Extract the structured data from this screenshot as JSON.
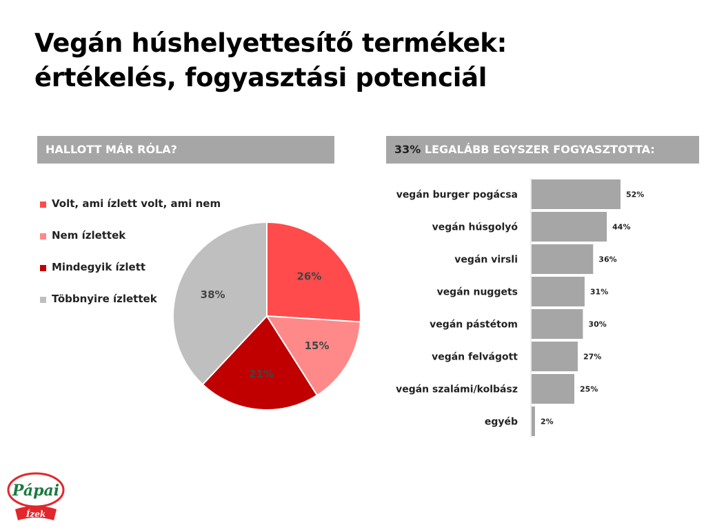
{
  "title": {
    "line1": "Vegán húshelyettesítő termékek:",
    "line2": "értékelés, fogyasztási potenciál"
  },
  "left_header": "HALLOTT  MÁR RÓLA?",
  "right_header": {
    "pct": "33%",
    "text": " LEGALÁBB EGYSZER FOGYASZTOTTA:"
  },
  "logo": {
    "brand": "Pápai",
    "sub": "Ízek"
  },
  "colors": {
    "red": "#ff4b4b",
    "pink": "#ff8989",
    "darkred": "#c00000",
    "gray": "#bfbfbf",
    "bar": "#a6a6a6",
    "logo_green": "#1b7a3e",
    "logo_red": "#e3262b"
  },
  "chart_data": [
    {
      "type": "pie",
      "title": "HALLOTT  MÁR RÓLA?",
      "legend_position": "left",
      "slices": [
        {
          "name": "Volt, ami ízlett volt, ami nem",
          "value": 26,
          "label": "26%",
          "color": "#ff4b4b"
        },
        {
          "name": "Nem ízlettek",
          "value": 15,
          "label": "15%",
          "color": "#ff8989"
        },
        {
          "name": "Mindegyik ízlett",
          "value": 21,
          "label": "21%",
          "color": "#c00000"
        },
        {
          "name": "Többnyire ízlettek",
          "value": 38,
          "label": "38%",
          "color": "#bfbfbf"
        }
      ]
    },
    {
      "type": "bar",
      "orientation": "horizontal",
      "title": "33% LEGALÁBB EGYSZER FOGYASZTOTTA:",
      "categories": [
        "vegán burger pogácsa",
        "vegán húsgolyó",
        "vegán virsli",
        "vegán nuggets",
        "vegán pástétom",
        "vegán felvágott",
        "vegán szalámi/kolbász",
        "egyéb"
      ],
      "values": [
        52,
        44,
        36,
        31,
        30,
        27,
        25,
        2
      ],
      "labels": [
        "52%",
        "44%",
        "36%",
        "31%",
        "30%",
        "27%",
        "25%",
        "2%"
      ],
      "xlim": [
        0,
        100
      ],
      "grid": false
    }
  ]
}
